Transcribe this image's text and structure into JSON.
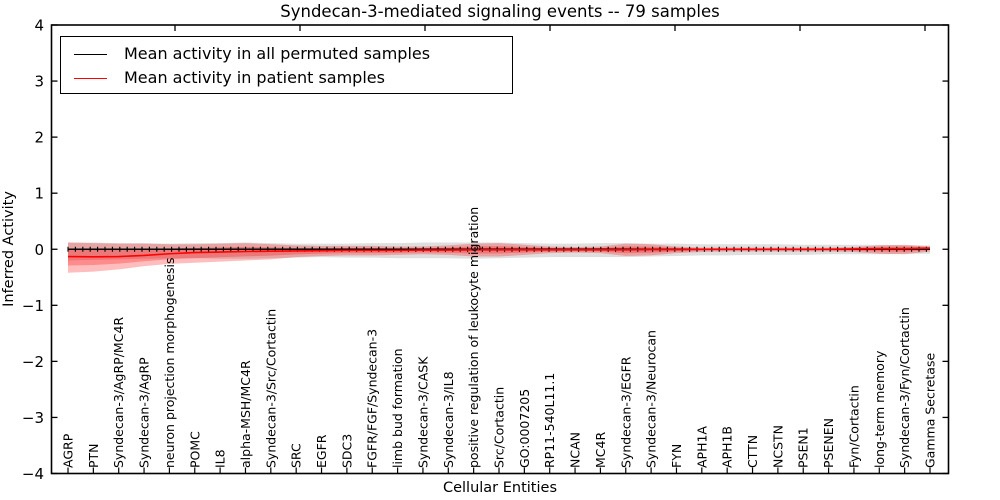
{
  "title": "Syndecan-3-mediated signaling events -- 79 samples",
  "axes": {
    "xlabel": "Cellular Entities",
    "ylabel": "Inferred Activity"
  },
  "legend": {
    "items": [
      {
        "label": "Mean activity in all permuted samples",
        "color": "#000000"
      },
      {
        "label": "Mean activity in patient samples",
        "color": "#ff0000"
      }
    ]
  },
  "colors": {
    "permuted_line": "#000000",
    "permuted_band": "rgba(0,0,0,0.13)",
    "patient_line": "#ff0000",
    "patient_band": "rgba(255,0,0,0.26)",
    "axis": "#000000",
    "background": "#ffffff"
  },
  "chart_data": {
    "type": "line",
    "title": "Syndecan-3-mediated signaling events -- 79 samples",
    "xlabel": "Cellular Entities",
    "ylabel": "Inferred Activity",
    "ylim": [
      -4,
      4
    ],
    "yticks": [
      4,
      3,
      2,
      1,
      0,
      -1,
      -2,
      -3,
      -4
    ],
    "grid": false,
    "legend_position": "upper left",
    "categories": [
      "AGRP",
      "PTN",
      "Syndecan-3/AgRP/MC4R",
      "Syndecan-3/AgRP",
      "neuron projection morphogenesis",
      "POMC",
      "IL8",
      "alpha-MSH/MC4R",
      "Syndecan-3/Src/Cortactin",
      "SRC",
      "EGFR",
      "SDC3",
      "FGFR/FGF/Syndecan-3",
      "limb bud formation",
      "Syndecan-3/CASK",
      "Syndecan-3/IL8",
      "positive regulation of leukocyte migration",
      "Src/Cortactin",
      "GO:0007205",
      "RP11-540L11.1",
      "NCAN",
      "MC4R",
      "Syndecan-3/EGFR",
      "Syndecan-3/Neurocan",
      "FYN",
      "APH1A",
      "APH1B",
      "CTTN",
      "NCSTN",
      "PSEN1",
      "PSENEN",
      "Fyn/Cortactin",
      "long-term memory",
      "Syndecan-3/Fyn/Cortactin",
      "Gamma Secretase"
    ],
    "series": [
      {
        "name": "Mean activity in all permuted samples",
        "color": "#000000",
        "band_color": "rgba(0,0,0,0.13)",
        "values": [
          0,
          0,
          0,
          0,
          0,
          0,
          0,
          0,
          0,
          0,
          0,
          0,
          0,
          0,
          0,
          0,
          0,
          0,
          0,
          0,
          0,
          0,
          0,
          0,
          0,
          0,
          0,
          0,
          0,
          0,
          0,
          0,
          0,
          0,
          0
        ],
        "band_upper": [
          0.12,
          0.12,
          0.11,
          0.11,
          0.1,
          0.11,
          0.11,
          0.12,
          0.11,
          0.1,
          0.1,
          0.1,
          0.11,
          0.11,
          0.12,
          0.12,
          0.12,
          0.12,
          0.11,
          0.1,
          0.1,
          0.11,
          0.11,
          0.1,
          0.1,
          0.09,
          0.09,
          0.09,
          0.09,
          0.08,
          0.08,
          0.08,
          0.08,
          0.07,
          0.07
        ],
        "band_lower": [
          -0.2,
          -0.19,
          -0.18,
          -0.17,
          -0.16,
          -0.16,
          -0.17,
          -0.17,
          -0.16,
          -0.15,
          -0.14,
          -0.15,
          -0.15,
          -0.16,
          -0.16,
          -0.16,
          -0.17,
          -0.16,
          -0.15,
          -0.14,
          -0.14,
          -0.14,
          -0.14,
          -0.13,
          -0.12,
          -0.11,
          -0.11,
          -0.1,
          -0.1,
          -0.1,
          -0.09,
          -0.09,
          -0.09,
          -0.08,
          -0.08
        ]
      },
      {
        "name": "Mean activity in patient samples",
        "color": "#ff0000",
        "band_color": "rgba(255,0,0,0.26)",
        "values": [
          -0.13,
          -0.135,
          -0.13,
          -0.11,
          -0.08,
          -0.06,
          -0.05,
          -0.04,
          -0.035,
          -0.03,
          -0.025,
          -0.02,
          -0.02,
          -0.02,
          -0.015,
          -0.015,
          -0.01,
          -0.01,
          -0.01,
          -0.01,
          -0.01,
          -0.01,
          -0.01,
          -0.005,
          -0.005,
          0,
          0,
          0,
          0,
          0,
          0,
          0.005,
          0.01,
          0.01,
          0.02
        ],
        "band_upper": [
          0.12,
          0.11,
          0.1,
          0.1,
          0.09,
          0.09,
          0.1,
          0.11,
          0.09,
          0.07,
          0.06,
          0.06,
          0.06,
          0.05,
          0.05,
          0.07,
          0.1,
          0.11,
          0.08,
          0.05,
          0.04,
          0.05,
          0.1,
          0.09,
          0.05,
          0.03,
          0.03,
          0.03,
          0.03,
          0.03,
          0.03,
          0.04,
          0.07,
          0.08,
          0.05
        ],
        "band_lower": [
          -0.42,
          -0.4,
          -0.36,
          -0.3,
          -0.26,
          -0.24,
          -0.22,
          -0.2,
          -0.18,
          -0.14,
          -0.12,
          -0.11,
          -0.11,
          -0.1,
          -0.09,
          -0.1,
          -0.13,
          -0.13,
          -0.1,
          -0.07,
          -0.06,
          -0.07,
          -0.12,
          -0.11,
          -0.07,
          -0.05,
          -0.04,
          -0.04,
          -0.04,
          -0.04,
          -0.04,
          -0.05,
          -0.08,
          -0.09,
          -0.04
        ]
      }
    ]
  }
}
